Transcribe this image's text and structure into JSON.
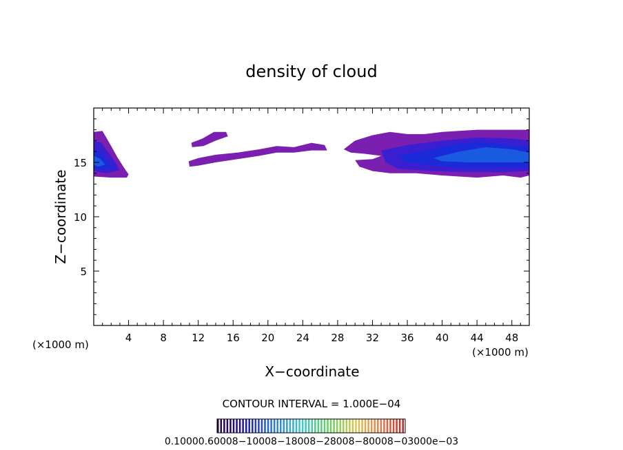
{
  "chart_data": {
    "type": "contour-filled",
    "title": "density of cloud",
    "xlabel": "X−coordinate",
    "ylabel": "Z−coordinate",
    "x_unit_label": "(×1000 m)",
    "x_unit_label_right": "(×1000 m)",
    "xlim": [
      0,
      50
    ],
    "ylim": [
      0,
      20
    ],
    "x_ticks": [
      4,
      8,
      12,
      16,
      20,
      24,
      28,
      32,
      36,
      40,
      44,
      48
    ],
    "x_tick_labels": [
      "4",
      "8",
      "12",
      "16",
      "20",
      "24",
      "28",
      "32",
      "36",
      "40",
      "44",
      "48"
    ],
    "y_ticks": [
      5,
      10,
      15
    ],
    "y_tick_labels": [
      "5",
      "10",
      "15"
    ],
    "contour_interval_text": "CONTOUR INTERVAL = 1.000E−04",
    "colorbar_labels": [
      "0.1000",
      "0.6000e−04",
      "0.1000e−03",
      "0.1500e−03",
      "0.2000e−03",
      "0.2500e−03",
      "0.3000e−03"
    ],
    "colorbar_label_text": "0.10000.60008−10008−18008−28008−80008−03000e−03",
    "levels": {
      "outer": "#7a1fb0",
      "mid": "#3a1fd0",
      "inner": "#1a2ad8",
      "core": "#1a5ae0"
    },
    "regions": [
      {
        "name": "left-edge-cloud",
        "level": "outer",
        "polygon": [
          [
            0,
            17.8
          ],
          [
            1.0,
            17.9
          ],
          [
            1.5,
            17.2
          ],
          [
            2.0,
            16.5
          ],
          [
            2.7,
            15.5
          ],
          [
            3.4,
            14.6
          ],
          [
            4.0,
            13.9
          ],
          [
            3.8,
            13.6
          ],
          [
            2.0,
            13.6
          ],
          [
            0,
            13.7
          ]
        ]
      },
      {
        "name": "left-edge-cloud",
        "level": "mid",
        "polygon": [
          [
            0,
            17.0
          ],
          [
            0.9,
            16.8
          ],
          [
            1.6,
            16.0
          ],
          [
            2.4,
            15.1
          ],
          [
            3.0,
            14.3
          ],
          [
            1.5,
            14.0
          ],
          [
            0,
            14.2
          ]
        ]
      },
      {
        "name": "left-edge-cloud",
        "level": "inner",
        "polygon": [
          [
            0,
            16.2
          ],
          [
            0.8,
            15.9
          ],
          [
            1.5,
            15.2
          ],
          [
            2.2,
            14.5
          ],
          [
            1.0,
            14.3
          ],
          [
            0,
            14.5
          ]
        ]
      },
      {
        "name": "left-edge-cloud",
        "level": "core",
        "polygon": [
          [
            0,
            15.6
          ],
          [
            0.8,
            15.3
          ],
          [
            1.3,
            14.8
          ],
          [
            0.5,
            14.6
          ],
          [
            0,
            14.8
          ]
        ]
      },
      {
        "name": "upper-small-band",
        "level": "outer",
        "polygon": [
          [
            11.2,
            16.8
          ],
          [
            12.5,
            17.2
          ],
          [
            13.8,
            17.8
          ],
          [
            15.2,
            17.8
          ],
          [
            15.4,
            17.4
          ],
          [
            14.0,
            17.0
          ],
          [
            12.6,
            16.5
          ],
          [
            11.3,
            16.4
          ]
        ]
      },
      {
        "name": "middle-thin-band",
        "level": "outer",
        "polygon": [
          [
            10.9,
            15.1
          ],
          [
            12.0,
            15.4
          ],
          [
            14.0,
            15.7
          ],
          [
            16.5,
            15.9
          ],
          [
            19.0,
            16.2
          ],
          [
            21.0,
            16.5
          ],
          [
            23.0,
            16.4
          ],
          [
            25.0,
            16.8
          ],
          [
            26.5,
            16.6
          ],
          [
            26.8,
            16.1
          ],
          [
            25.0,
            16.1
          ],
          [
            23.0,
            15.9
          ],
          [
            21.0,
            15.9
          ],
          [
            19.0,
            15.6
          ],
          [
            16.5,
            15.3
          ],
          [
            14.0,
            15.0
          ],
          [
            12.0,
            14.7
          ],
          [
            11.0,
            14.6
          ]
        ]
      },
      {
        "name": "right-main-cloud",
        "level": "outer",
        "polygon": [
          [
            28.7,
            16.2
          ],
          [
            30.0,
            17.0
          ],
          [
            32.0,
            17.5
          ],
          [
            34.0,
            17.8
          ],
          [
            36.0,
            17.6
          ],
          [
            38.0,
            17.6
          ],
          [
            40.0,
            17.8
          ],
          [
            44.0,
            18.0
          ],
          [
            48.0,
            18.0
          ],
          [
            50,
            18.0
          ],
          [
            50,
            13.8
          ],
          [
            49.0,
            13.6
          ],
          [
            47.0,
            13.8
          ],
          [
            44.0,
            13.6
          ],
          [
            40.0,
            13.8
          ],
          [
            37.0,
            14.0
          ],
          [
            34.0,
            14.0
          ],
          [
            32.0,
            14.2
          ],
          [
            30.5,
            14.6
          ],
          [
            30.0,
            15.2
          ],
          [
            32.0,
            15.3
          ],
          [
            33.0,
            15.6
          ],
          [
            31.0,
            15.8
          ],
          [
            29.5,
            15.9
          ]
        ]
      },
      {
        "name": "right-main-cloud",
        "level": "mid",
        "polygon": [
          [
            33.0,
            16.1
          ],
          [
            36.0,
            16.6
          ],
          [
            40.0,
            17.0
          ],
          [
            44.0,
            17.3
          ],
          [
            48.0,
            17.2
          ],
          [
            50,
            17.0
          ],
          [
            50,
            14.2
          ],
          [
            47.0,
            14.1
          ],
          [
            43.0,
            14.1
          ],
          [
            39.0,
            14.2
          ],
          [
            35.0,
            14.4
          ],
          [
            33.5,
            15.0
          ]
        ]
      },
      {
        "name": "right-main-cloud",
        "level": "inner",
        "polygon": [
          [
            35.0,
            15.6
          ],
          [
            38.0,
            16.1
          ],
          [
            41.0,
            16.6
          ],
          [
            44.0,
            16.9
          ],
          [
            47.0,
            16.7
          ],
          [
            50,
            16.4
          ],
          [
            50,
            14.6
          ],
          [
            47.0,
            14.5
          ],
          [
            43.0,
            14.5
          ],
          [
            39.0,
            14.7
          ],
          [
            36.0,
            15.0
          ]
        ]
      },
      {
        "name": "right-main-cloud",
        "level": "core",
        "polygon": [
          [
            39.0,
            15.4
          ],
          [
            42.0,
            16.0
          ],
          [
            45.0,
            16.4
          ],
          [
            48.0,
            16.2
          ],
          [
            50,
            15.9
          ],
          [
            50,
            15.0
          ],
          [
            47.0,
            15.0
          ],
          [
            43.0,
            15.0
          ],
          [
            40.0,
            15.1
          ]
        ]
      }
    ],
    "grid": false,
    "legend": "colorbar-bottom"
  }
}
